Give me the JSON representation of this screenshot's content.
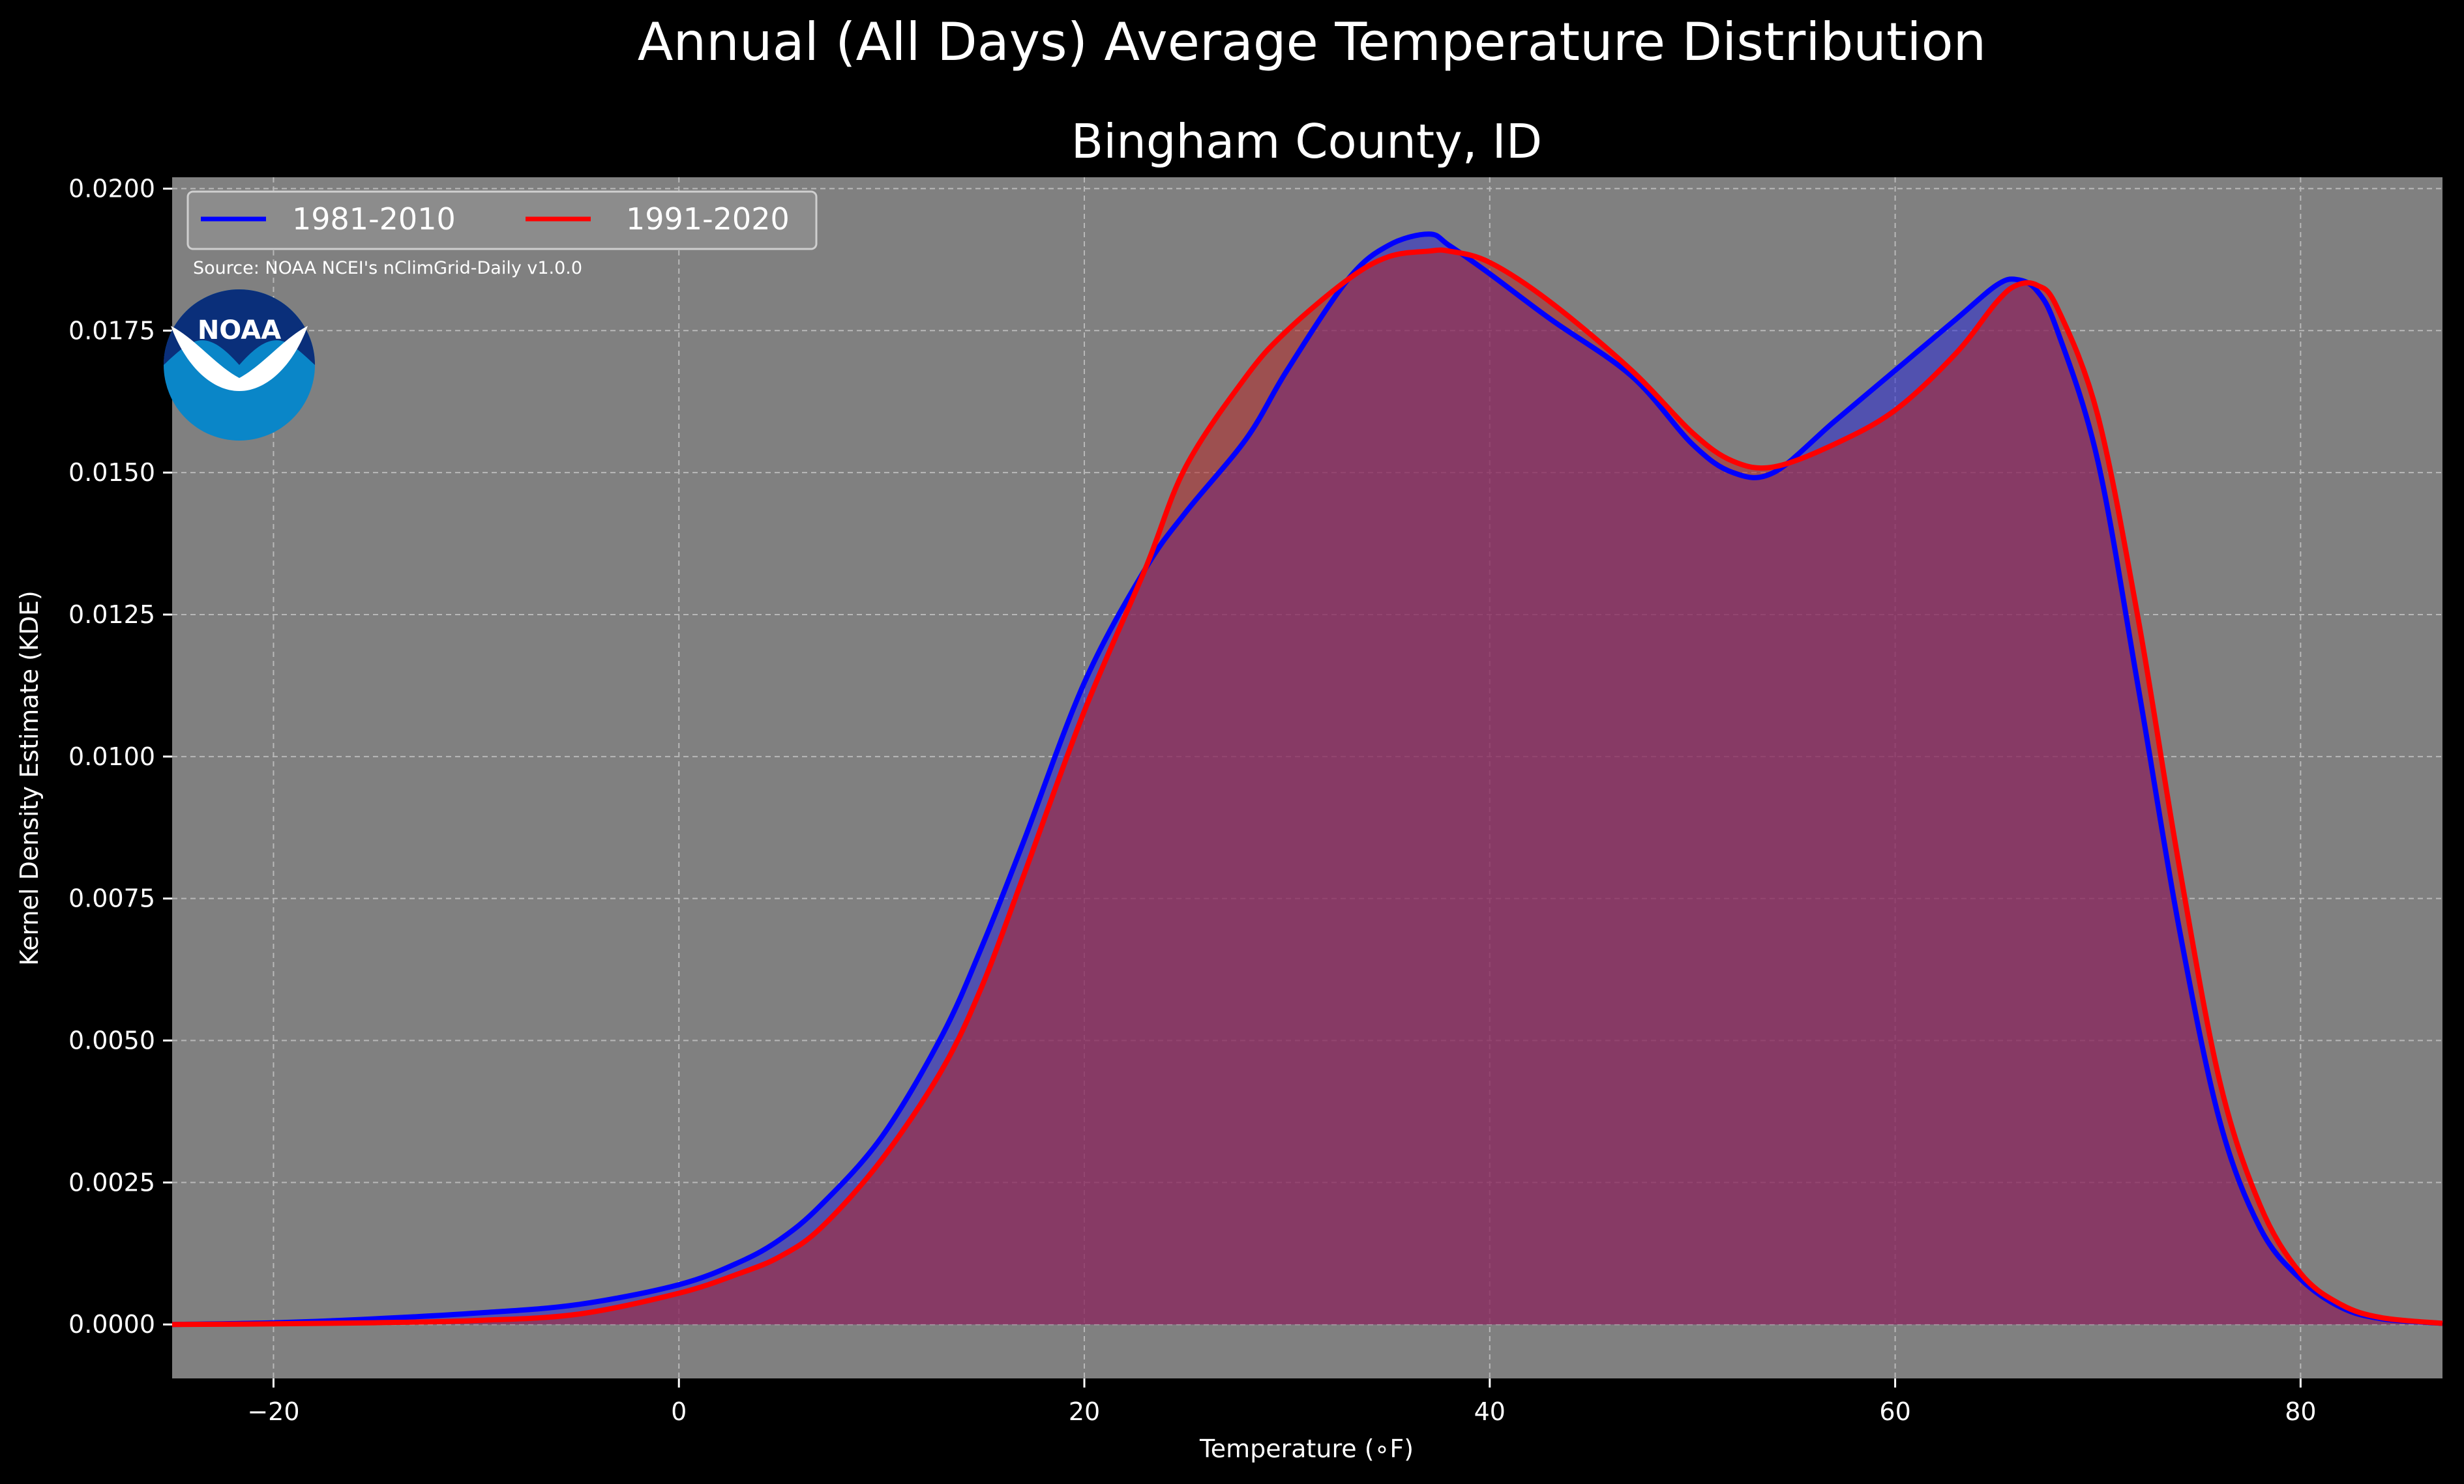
{
  "figure": {
    "suptitle": "Annual (All Days) Average Temperature Distribution",
    "subtitle": "Bingham County, ID",
    "source": "Source: NOAA NCEI's nClimGrid-Daily v1.0.0",
    "logo_text": "NOAA",
    "logo_icon": "noaa-logo-icon"
  },
  "chart_data": {
    "type": "area",
    "title": "Bingham County, ID",
    "xlabel": "Temperature (∘F)",
    "ylabel": "Kernel Density Estimate (KDE)",
    "xlim": [
      -25,
      87
    ],
    "ylim": [
      -0.00095,
      0.0202
    ],
    "xticks": [
      -20,
      0,
      20,
      40,
      60,
      80
    ],
    "yticks": [
      0.0,
      0.0025,
      0.005,
      0.0075,
      0.01,
      0.0125,
      0.015,
      0.0175,
      0.02
    ],
    "xtick_labels": [
      "−20",
      "0",
      "20",
      "40",
      "60",
      "80"
    ],
    "ytick_labels": [
      "0.0000",
      "0.0025",
      "0.0050",
      "0.0075",
      "0.0100",
      "0.0125",
      "0.0150",
      "0.0175",
      "0.0200"
    ],
    "grid": true,
    "legend_position": "upper-left",
    "background_color": "#808080",
    "series": [
      {
        "name": "1981-2010",
        "color": "#0000ff",
        "fill_color": "#2a2ad6",
        "points": [
          [
            -25,
            0.0
          ],
          [
            -20,
            3e-05
          ],
          [
            -15,
            0.0001
          ],
          [
            -10,
            0.0002
          ],
          [
            -5,
            0.00035
          ],
          [
            0,
            0.0007
          ],
          [
            3,
            0.0011
          ],
          [
            5,
            0.0015
          ],
          [
            7,
            0.0021
          ],
          [
            10,
            0.0033
          ],
          [
            13,
            0.0051
          ],
          [
            15,
            0.0067
          ],
          [
            17,
            0.0085
          ],
          [
            20,
            0.0113
          ],
          [
            23,
            0.0133
          ],
          [
            25,
            0.0143
          ],
          [
            28,
            0.0156
          ],
          [
            30,
            0.0168
          ],
          [
            33,
            0.0184
          ],
          [
            35,
            0.019
          ],
          [
            37,
            0.0192
          ],
          [
            38,
            0.019
          ],
          [
            40,
            0.0185
          ],
          [
            43,
            0.0177
          ],
          [
            47,
            0.0167
          ],
          [
            50,
            0.0155
          ],
          [
            52,
            0.015
          ],
          [
            54,
            0.015
          ],
          [
            57,
            0.0159
          ],
          [
            60,
            0.0168
          ],
          [
            63,
            0.0177
          ],
          [
            65,
            0.0183
          ],
          [
            66,
            0.0184
          ],
          [
            67,
            0.0182
          ],
          [
            68,
            0.0175
          ],
          [
            70,
            0.0152
          ],
          [
            72,
            0.0112
          ],
          [
            74,
            0.007
          ],
          [
            76,
            0.0036
          ],
          [
            78,
            0.0017
          ],
          [
            80,
            0.0008
          ],
          [
            82,
            0.0003
          ],
          [
            84,
            0.0001
          ],
          [
            87,
            2e-05
          ]
        ]
      },
      {
        "name": "1991-2020",
        "color": "#ff0000",
        "fill_color": "#b42828",
        "points": [
          [
            -25,
            0.0
          ],
          [
            -20,
            1e-05
          ],
          [
            -15,
            3e-05
          ],
          [
            -10,
            7e-05
          ],
          [
            -5,
            0.00018
          ],
          [
            0,
            0.00055
          ],
          [
            3,
            0.0009
          ],
          [
            5,
            0.0012
          ],
          [
            7,
            0.0017
          ],
          [
            10,
            0.0029
          ],
          [
            13,
            0.0045
          ],
          [
            15,
            0.006
          ],
          [
            17,
            0.0079
          ],
          [
            20,
            0.0108
          ],
          [
            23,
            0.0133
          ],
          [
            25,
            0.0151
          ],
          [
            28,
            0.0167
          ],
          [
            30,
            0.0175
          ],
          [
            33,
            0.0184
          ],
          [
            35,
            0.0188
          ],
          [
            37,
            0.0189
          ],
          [
            38,
            0.0189
          ],
          [
            40,
            0.0187
          ],
          [
            43,
            0.018
          ],
          [
            47,
            0.0168
          ],
          [
            50,
            0.0157
          ],
          [
            52,
            0.0152
          ],
          [
            54,
            0.0151
          ],
          [
            57,
            0.0155
          ],
          [
            60,
            0.0161
          ],
          [
            63,
            0.0171
          ],
          [
            65,
            0.018
          ],
          [
            66,
            0.0183
          ],
          [
            67,
            0.0183
          ],
          [
            68,
            0.0179
          ],
          [
            70,
            0.016
          ],
          [
            72,
            0.0124
          ],
          [
            74,
            0.0081
          ],
          [
            76,
            0.0043
          ],
          [
            78,
            0.0021
          ],
          [
            80,
            0.0009
          ],
          [
            82,
            0.00035
          ],
          [
            84,
            0.00012
          ],
          [
            87,
            2e-05
          ]
        ]
      }
    ]
  }
}
